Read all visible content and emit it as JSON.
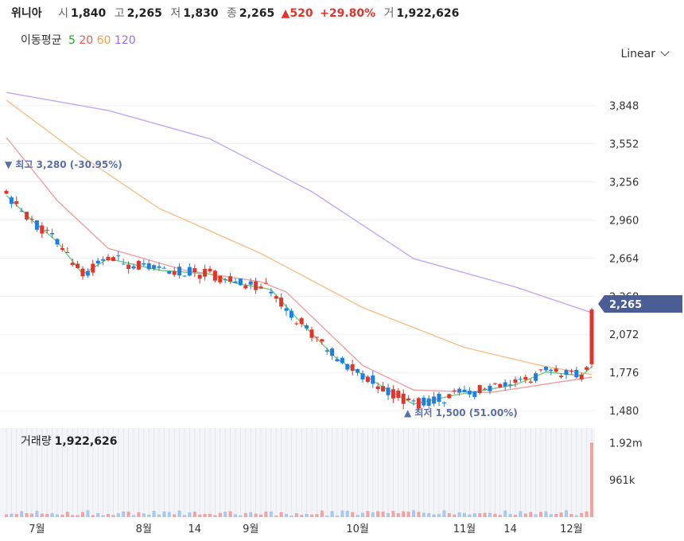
{
  "header": {
    "name": "위니아",
    "open_label": "시",
    "open": "1,840",
    "high_label": "고",
    "high": "2,265",
    "low_label": "저",
    "low": "1,830",
    "close_label": "종",
    "close": "2,265",
    "change": "▲520",
    "change_pct": "+29.80%",
    "vol_label": "거",
    "volume": "1,922,626"
  },
  "ma_legend": {
    "title": "이동평균",
    "items": [
      {
        "label": "5",
        "color": "#2aa12a"
      },
      {
        "label": "20",
        "color": "#e55a5a"
      },
      {
        "label": "60",
        "color": "#f0a050"
      },
      {
        "label": "120",
        "color": "#9a6ee8"
      }
    ]
  },
  "scale_button": "Linear",
  "annotations": {
    "high": "▼ 최고 3,280 (-30.95%)",
    "low": "▲ 최저 1,500 (51.00%)",
    "last_price": "2,265"
  },
  "volume_panel": {
    "label": "거래량",
    "value": "1,922,626"
  },
  "chart_data": {
    "type": "candlestick",
    "y_ticks": [
      "3,848",
      "3,552",
      "3,256",
      "2,960",
      "2,664",
      "2,368",
      "2,072",
      "1,776",
      "1,480"
    ],
    "y_tick_values": [
      3848,
      3552,
      3256,
      2960,
      2664,
      2368,
      2072,
      1776,
      1480
    ],
    "ylim": [
      1425,
      4050
    ],
    "volume_ticks": [
      "1.92m",
      "961k"
    ],
    "volume_tick_values": [
      1920000,
      961000
    ],
    "x_tick_labels": [
      {
        "label": "7월",
        "index": 6
      },
      {
        "label": "8월",
        "index": 27
      },
      {
        "label": "14",
        "index": 37
      },
      {
        "label": "9월",
        "index": 48
      },
      {
        "label": "10월",
        "index": 69
      },
      {
        "label": "11월",
        "index": 90
      },
      {
        "label": "14",
        "index": 99
      },
      {
        "label": "12월",
        "index": 111
      }
    ],
    "colors": {
      "up": "#e0352b",
      "down": "#1e7fe0"
    },
    "ma_lines": {
      "ma120": [
        [
          0,
          3950
        ],
        [
          20,
          3810
        ],
        [
          40,
          3590
        ],
        [
          60,
          3180
        ],
        [
          80,
          2660
        ],
        [
          100,
          2440
        ],
        [
          115,
          2240
        ]
      ],
      "ma60": [
        [
          0,
          3890
        ],
        [
          15,
          3450
        ],
        [
          30,
          3050
        ],
        [
          50,
          2700
        ],
        [
          70,
          2280
        ],
        [
          90,
          1970
        ],
        [
          105,
          1830
        ],
        [
          115,
          1760
        ]
      ],
      "ma20": [
        [
          0,
          3600
        ],
        [
          10,
          3110
        ],
        [
          20,
          2740
        ],
        [
          35,
          2570
        ],
        [
          50,
          2480
        ],
        [
          55,
          2400
        ],
        [
          70,
          1830
        ],
        [
          80,
          1640
        ],
        [
          95,
          1620
        ],
        [
          115,
          1740
        ]
      ],
      "ma5": [
        [
          0,
          3150
        ],
        [
          5,
          2960
        ],
        [
          10,
          2790
        ],
        [
          15,
          2540
        ],
        [
          20,
          2660
        ],
        [
          30,
          2570
        ],
        [
          40,
          2540
        ],
        [
          45,
          2470
        ],
        [
          52,
          2420
        ],
        [
          57,
          2200
        ],
        [
          65,
          1880
        ],
        [
          75,
          1640
        ],
        [
          80,
          1530
        ],
        [
          88,
          1600
        ],
        [
          100,
          1680
        ],
        [
          106,
          1780
        ],
        [
          113,
          1750
        ],
        [
          115,
          1820
        ]
      ]
    }
  }
}
